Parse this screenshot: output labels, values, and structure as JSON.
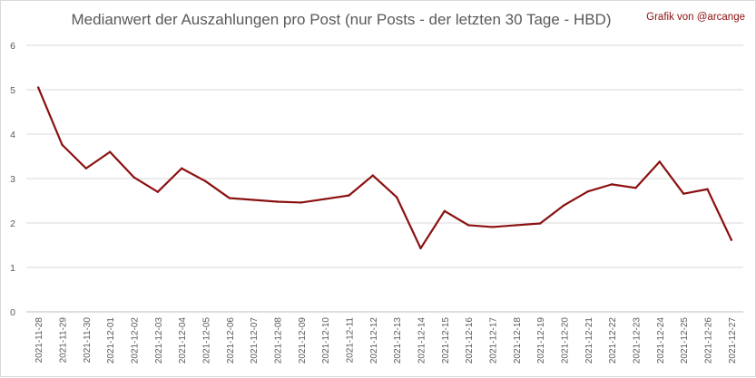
{
  "chart_data": {
    "type": "line",
    "title": "Medianwert der Auszahlungen pro Post (nur Posts - der letzten 30 Tage - HBD)",
    "credit": "Grafik von @arcange",
    "xlabel": "",
    "ylabel": "",
    "ylim": [
      0,
      6
    ],
    "yticks": [
      0,
      1,
      2,
      3,
      4,
      5,
      6
    ],
    "grid": true,
    "legend": "none",
    "categories": [
      "2021-11-28",
      "2021-11-29",
      "2021-11-30",
      "2021-12-01",
      "2021-12-02",
      "2021-12-03",
      "2021-12-04",
      "2021-12-05",
      "2021-12-06",
      "2021-12-07",
      "2021-12-08",
      "2021-12-09",
      "2021-12-10",
      "2021-12-11",
      "2021-12-12",
      "2021-12-13",
      "2021-12-14",
      "2021-12-15",
      "2021-12-16",
      "2021-12-17",
      "2021-12-18",
      "2021-12-19",
      "2021-12-20",
      "2021-12-21",
      "2021-12-22",
      "2021-12-23",
      "2021-12-24",
      "2021-12-25",
      "2021-12-26",
      "2021-12-27"
    ],
    "series": [
      {
        "color": "#8b1010",
        "values": [
          5.05,
          3.76,
          3.23,
          3.6,
          3.03,
          2.7,
          3.23,
          2.94,
          2.56,
          2.52,
          2.48,
          2.46,
          2.54,
          2.62,
          3.07,
          2.58,
          1.43,
          2.27,
          1.95,
          1.91,
          1.95,
          1.99,
          2.4,
          2.71,
          2.87,
          2.79,
          3.38,
          2.66,
          2.76,
          1.62
        ]
      }
    ]
  }
}
